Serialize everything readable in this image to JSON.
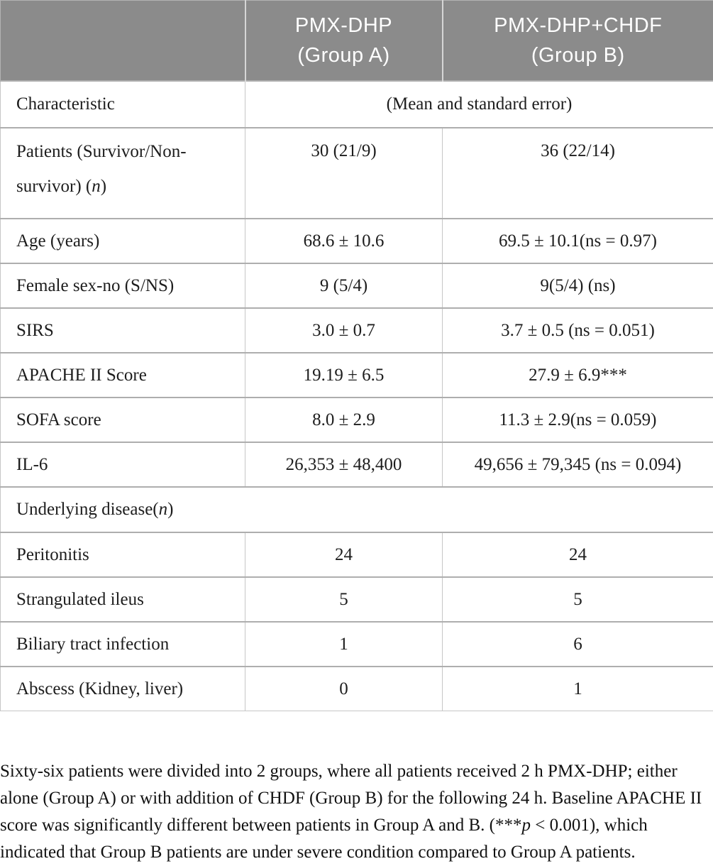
{
  "colors": {
    "header_bg": "#8b8b8b",
    "header_text": "#ffffff",
    "body_text": "#1d1d1d",
    "border_horizontal": "#aeaeae",
    "border_vertical": "#c6c6c6"
  },
  "header": {
    "col_label": "",
    "group_a_line1": "PMX-DHP",
    "group_a_line2": "(Group A)",
    "group_b_line1": "PMX-DHP+CHDF",
    "group_b_line2": "(Group B)"
  },
  "subheader": {
    "label": "Characteristic",
    "value": "(Mean and standard error)"
  },
  "patients_row": {
    "label_prefix": "Patients (Survivor/Non-survivor) (",
    "label_italic": "n",
    "label_suffix": ")",
    "a": "30 (21/9)",
    "b": "36 (22/14)"
  },
  "stat_rows": [
    {
      "label": "Age (years)",
      "a": "68.6 ± 10.6",
      "b": "69.5 ± 10.1(ns = 0.97)"
    },
    {
      "label": "Female sex-no (S/NS)",
      "a": "9 (5/4)",
      "b": "9(5/4) (ns)"
    },
    {
      "label": "SIRS",
      "a": "3.0 ± 0.7",
      "b": "3.7 ± 0.5 (ns = 0.051)"
    },
    {
      "label": "APACHE II Score",
      "a": "19.19 ± 6.5",
      "b": "27.9 ± 6.9***"
    },
    {
      "label": "SOFA score",
      "a": "8.0 ± 2.9",
      "b": "11.3 ± 2.9(ns = 0.059)"
    },
    {
      "label": "IL-6",
      "a": "26,353 ± 48,400",
      "b": "49,656 ± 79,345 (ns = 0.094)"
    }
  ],
  "section_row": {
    "label_prefix": "Underlying disease(",
    "label_italic": "n",
    "label_suffix": ")"
  },
  "disease_rows": [
    {
      "label": "Peritonitis",
      "a": "24",
      "b": "24"
    },
    {
      "label": "Strangulated ileus",
      "a": "5",
      "b": "5"
    },
    {
      "label": "Biliary tract infection",
      "a": "1",
      "b": "6"
    },
    {
      "label": "Abscess (Kidney, liver)",
      "a": "0",
      "b": "1"
    }
  ],
  "footnote": {
    "part1": "Sixty-six patients were divided into 2 groups, where all patients received 2 h PMX-DHP; either alone (Group A) or with addition of CHDF (Group B) for the following 24 h. Baseline APACHE II score was significantly different between patients in Group A and B. (***",
    "italic": "p",
    "part2": " < 0.001), which indicated that Group B patients are under severe condition compared to Group A patients."
  }
}
